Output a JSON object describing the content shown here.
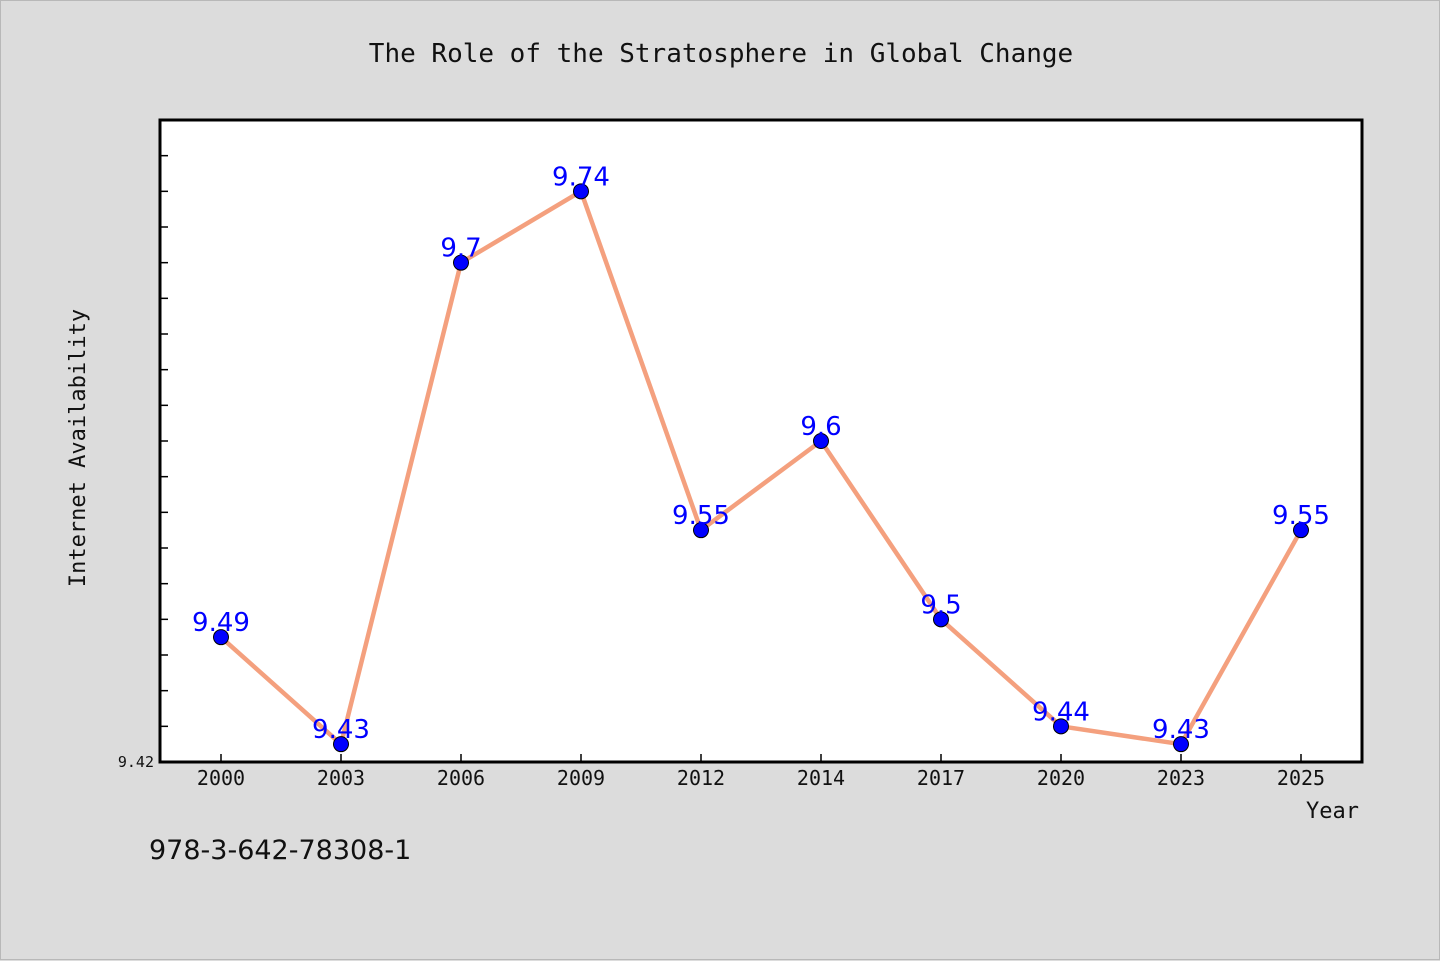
{
  "footnote": "978-3-642-78308-1",
  "chart_data": {
    "type": "line",
    "title": "The Role of the Stratosphere in Global Change",
    "xlabel": "Year",
    "ylabel": "Internet Availability",
    "categories": [
      "2000",
      "2003",
      "2006",
      "2009",
      "2012",
      "2014",
      "2017",
      "2020",
      "2023",
      "2025"
    ],
    "series": [
      {
        "values": [
          9.49,
          9.43,
          9.7,
          9.74,
          9.55,
          9.6,
          9.5,
          9.44,
          9.43,
          9.55
        ],
        "data_labels": [
          "9.49",
          "9.43",
          "9.7",
          "9.74",
          "9.55",
          "9.6",
          "9.5",
          "9.44",
          "9.43",
          "9.55"
        ]
      }
    ],
    "ytick_labels": [
      "9.42"
    ],
    "ylim": [
      9.42,
      9.78
    ],
    "grid": false,
    "colors": {
      "line": "#f4a07e",
      "marker": "#0000ff",
      "data_label": "#0000ff",
      "plot_bg": "#ffffff",
      "page_bg": "#dcdcdc"
    }
  }
}
